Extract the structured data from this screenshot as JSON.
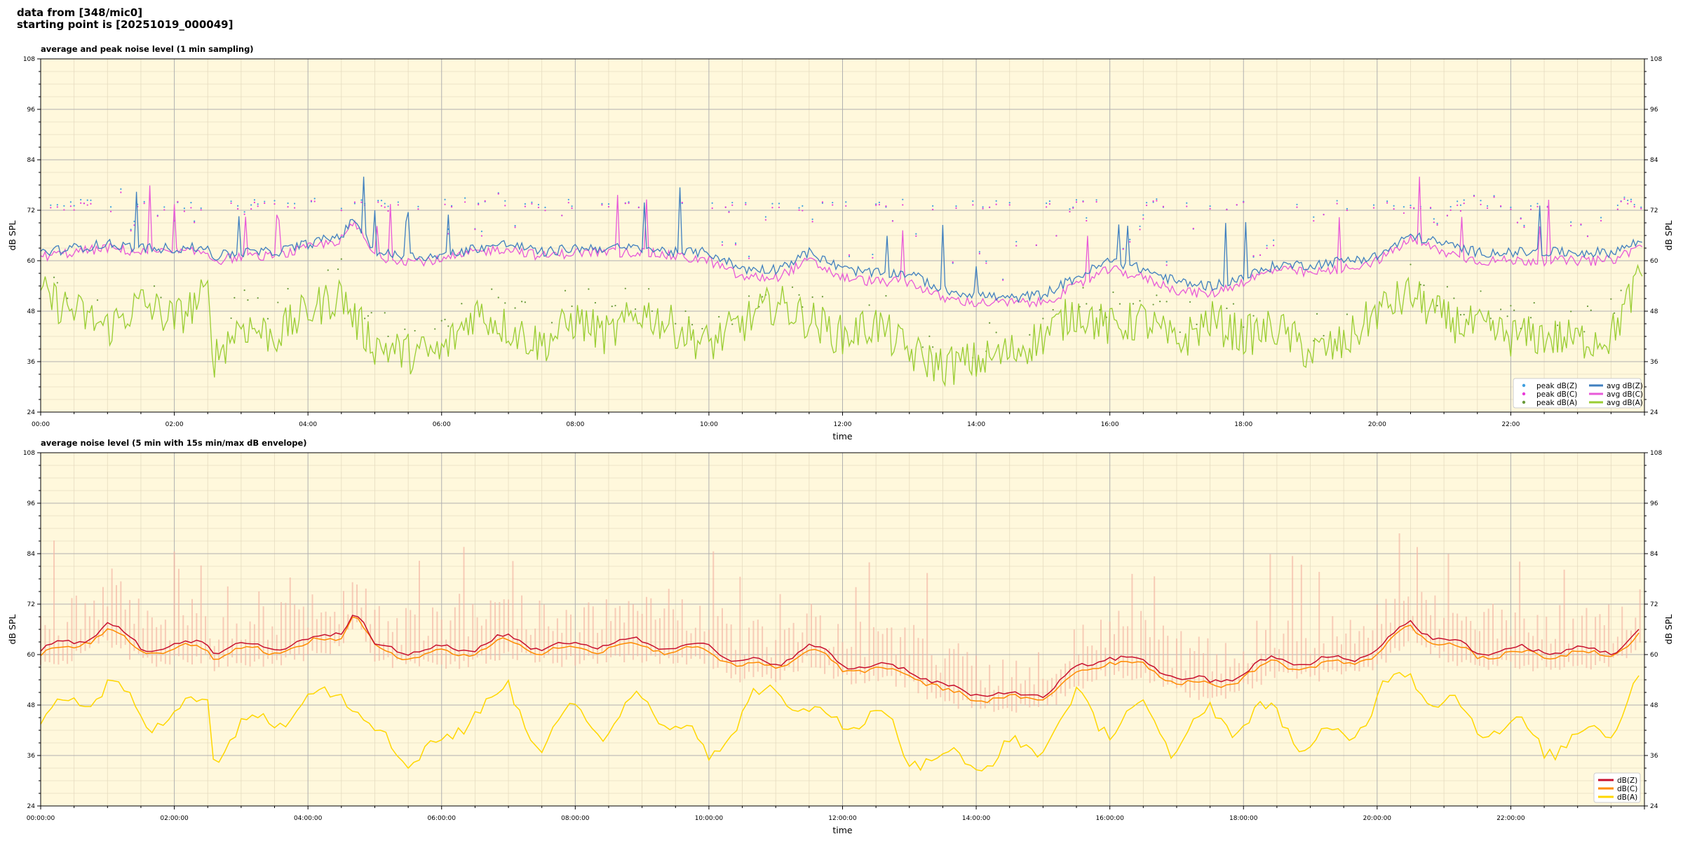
{
  "header": {
    "line1": "data from [348/mic0]",
    "line2": "starting point is [20251019_000049]"
  },
  "chart_data": [
    {
      "type": "line",
      "title": "average and peak noise level (1 min sampling)",
      "xlabel": "time",
      "ylabel": "dB SPL",
      "ylim": [
        24,
        108
      ],
      "yticks": [
        24,
        36,
        48,
        60,
        72,
        84,
        96,
        108
      ],
      "xlim_hours": [
        0,
        24
      ],
      "xtick_labels": [
        "00:00",
        "02:00",
        "04:00",
        "06:00",
        "08:00",
        "10:00",
        "12:00",
        "14:00",
        "16:00",
        "18:00",
        "20:00",
        "22:00"
      ],
      "grid": true,
      "legend_position": "bottom-right",
      "colors": {
        "background": "#fff8dc",
        "z": "#3f7fbf",
        "c": "#e85ad8",
        "a": "#9acd32"
      },
      "series": [
        {
          "name": "peak dB(Z)",
          "kind": "points",
          "color": "#3f9fdf"
        },
        {
          "name": "peak dB(C)",
          "kind": "points",
          "color": "#e83ad8"
        },
        {
          "name": "peak dB(A)",
          "kind": "points",
          "color": "#6a9a3a"
        },
        {
          "name": "avg dB(Z)",
          "kind": "line",
          "color": "#3f7fbf"
        },
        {
          "name": "avg dB(C)",
          "kind": "line",
          "color": "#e85ad8"
        },
        {
          "name": "avg dB(A)",
          "kind": "line",
          "color": "#9acd32"
        }
      ],
      "x_hours": [
        0,
        0.5,
        1,
        1.5,
        2,
        2.5,
        2.6,
        3,
        3.5,
        4,
        4.5,
        4.7,
        5,
        5.5,
        6,
        6.5,
        7,
        7.5,
        8,
        8.5,
        9,
        9.5,
        10,
        10.5,
        11,
        11.5,
        12,
        12.5,
        13,
        13.5,
        14,
        14.5,
        15,
        15.5,
        16,
        16.5,
        17,
        17.5,
        18,
        18.5,
        19,
        19.5,
        20,
        20.5,
        21,
        21.5,
        22,
        22.5,
        23,
        23.5,
        24
      ],
      "avg_z": [
        62,
        63,
        64,
        63,
        63,
        63,
        61,
        62,
        62,
        64,
        66,
        70,
        62,
        61,
        61,
        63,
        64,
        62,
        63,
        63,
        63,
        62,
        62,
        58,
        58,
        62,
        58,
        57,
        57,
        53,
        52,
        51,
        52,
        56,
        60,
        58,
        55,
        54,
        56,
        59,
        59,
        60,
        61,
        66,
        64,
        62,
        62,
        62,
        62,
        62,
        65
      ],
      "avg_c": [
        61,
        62,
        63,
        62,
        62,
        62,
        60,
        61,
        61,
        63,
        65,
        69,
        61,
        60,
        60,
        62,
        63,
        61,
        62,
        62,
        62,
        61,
        60,
        56,
        56,
        60,
        56,
        55,
        55,
        51,
        50,
        50,
        50,
        54,
        58,
        56,
        53,
        52,
        55,
        58,
        57,
        58,
        60,
        65,
        62,
        60,
        60,
        60,
        60,
        60,
        64
      ],
      "avg_a": [
        52,
        48,
        44,
        50,
        46,
        52,
        37,
        45,
        42,
        48,
        52,
        46,
        40,
        38,
        38,
        48,
        44,
        40,
        46,
        42,
        48,
        44,
        40,
        45,
        50,
        46,
        42,
        45,
        38,
        35,
        36,
        38,
        42,
        48,
        44,
        46,
        40,
        46,
        42,
        44,
        38,
        40,
        48,
        52,
        46,
        44,
        42,
        42,
        41,
        42,
        58
      ],
      "peak_band": [
        74,
        74,
        74,
        74,
        74,
        74,
        74,
        74,
        74,
        74,
        74,
        74,
        74,
        73,
        73,
        74,
        74,
        74,
        74,
        74,
        74,
        74,
        74,
        74,
        74,
        74,
        74,
        74,
        74,
        74,
        74,
        74,
        74,
        74,
        74,
        74,
        74,
        74,
        74,
        74,
        74,
        74,
        74,
        74,
        74,
        74,
        74,
        74,
        74,
        74,
        74
      ]
    },
    {
      "type": "line",
      "title": "average noise level (5 min with 15s min/max dB envelope)",
      "xlabel": "time",
      "ylabel": "dB SPL",
      "ylim": [
        24,
        108
      ],
      "yticks": [
        24,
        36,
        48,
        60,
        72,
        84,
        96,
        108
      ],
      "xlim_hours": [
        0,
        24
      ],
      "xtick_labels": [
        "00:00:00",
        "02:00:00",
        "04:00:00",
        "06:00:00",
        "08:00:00",
        "10:00:00",
        "12:00:00",
        "14:00:00",
        "16:00:00",
        "18:00:00",
        "20:00:00",
        "22:00:00"
      ],
      "grid": true,
      "legend_position": "bottom-right",
      "colors": {
        "background": "#fff8dc",
        "envelope": "#f5b8a6"
      },
      "series": [
        {
          "name": "dB(Z)",
          "color": "#c8102e"
        },
        {
          "name": "dB(C)",
          "color": "#ff8c00"
        },
        {
          "name": "dB(A)",
          "color": "#ffd700"
        }
      ],
      "x_hours": [
        0,
        0.5,
        1,
        1.5,
        2,
        2.5,
        2.6,
        3,
        3.5,
        4,
        4.5,
        4.7,
        5,
        5.5,
        6,
        6.5,
        7,
        7.5,
        8,
        8.5,
        9,
        9.5,
        10,
        10.5,
        11,
        11.5,
        12,
        12.5,
        13,
        13.5,
        14,
        14.5,
        15,
        15.5,
        16,
        16.5,
        17,
        17.5,
        18,
        18.5,
        19,
        19.5,
        20,
        20.5,
        21,
        21.5,
        22,
        22.5,
        23,
        23.5,
        24
      ],
      "z": [
        61,
        63,
        67,
        62,
        62,
        63,
        61,
        62,
        62,
        63,
        66,
        71,
        62,
        61,
        61,
        62,
        64,
        62,
        62,
        63,
        63,
        62,
        62,
        58,
        58,
        62,
        58,
        57,
        57,
        52,
        51,
        50,
        51,
        56,
        60,
        58,
        55,
        53,
        56,
        59,
        58,
        59,
        61,
        68,
        63,
        61,
        61,
        61,
        61,
        61,
        66
      ],
      "c": [
        60,
        62,
        66,
        61,
        61,
        62,
        60,
        61,
        61,
        62,
        65,
        70,
        61,
        60,
        60,
        61,
        63,
        61,
        61,
        62,
        62,
        61,
        61,
        57,
        57,
        61,
        57,
        56,
        56,
        51,
        50,
        49,
        50,
        55,
        59,
        57,
        54,
        52,
        55,
        58,
        57,
        58,
        60,
        67,
        62,
        60,
        60,
        60,
        60,
        60,
        65
      ],
      "a": [
        44,
        50,
        52,
        46,
        44,
        52,
        36,
        42,
        46,
        48,
        54,
        48,
        40,
        37,
        37,
        48,
        50,
        40,
        46,
        42,
        50,
        44,
        36,
        46,
        52,
        46,
        44,
        46,
        37,
        34,
        35,
        36,
        40,
        48,
        44,
        46,
        38,
        46,
        44,
        46,
        38,
        40,
        50,
        56,
        48,
        44,
        42,
        39,
        39,
        44,
        56
      ]
    }
  ]
}
